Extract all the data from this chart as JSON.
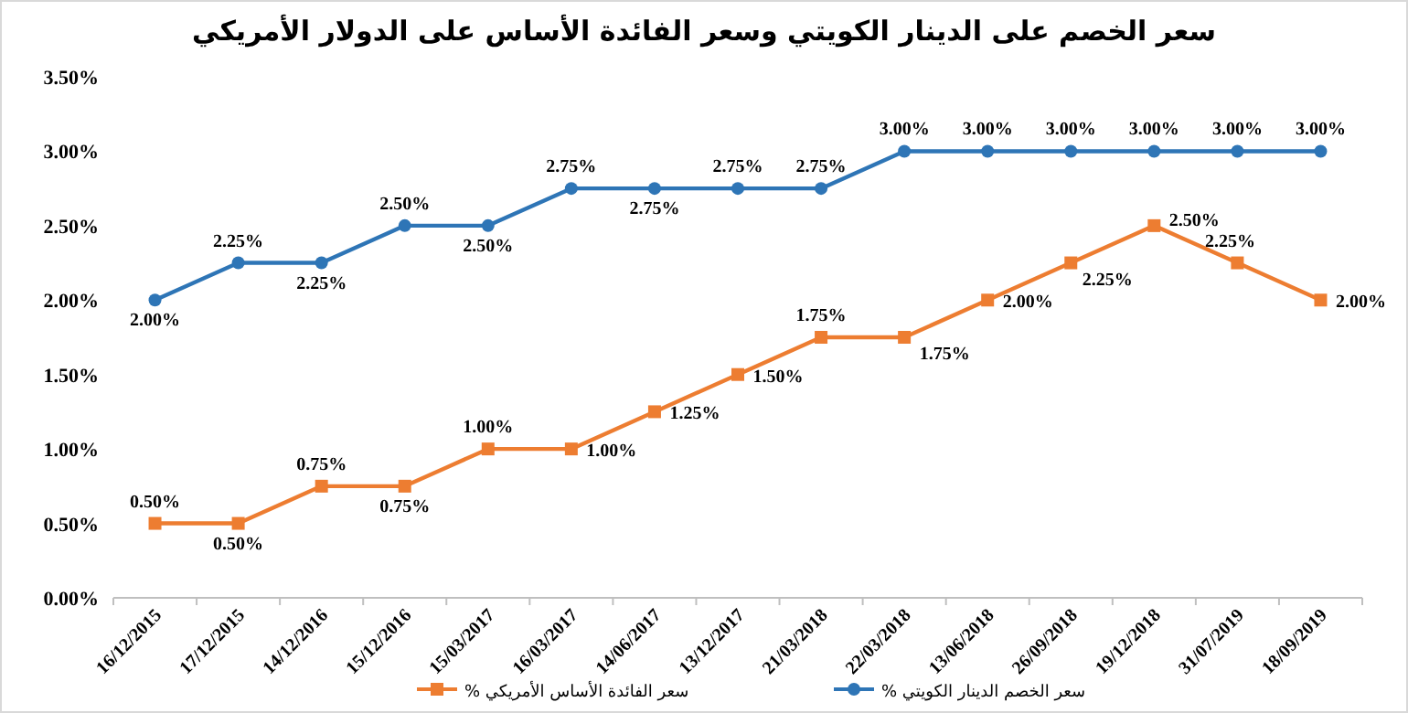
{
  "chart_data": {
    "type": "line",
    "title": "سعر الخصم على الدينار الكويتي وسعر الفائدة الأساس على الدولار الأمريكي",
    "categories": [
      "16/12/2015",
      "17/12/2015",
      "14/12/2016",
      "15/12/2016",
      "15/03/2017",
      "16/03/2017",
      "14/06/2017",
      "13/12/2017",
      "21/03/2018",
      "22/03/2018",
      "13/06/2018",
      "26/09/2018",
      "19/12/2018",
      "31/07/2019",
      "18/09/2019"
    ],
    "series": [
      {
        "name": "سعر الخصم الدينار الكويتي %",
        "color": "#2e75b6",
        "marker": "circle",
        "values": [
          2.0,
          2.25,
          2.25,
          2.5,
          2.5,
          2.75,
          2.75,
          2.75,
          2.75,
          3.0,
          3.0,
          3.0,
          3.0,
          3.0,
          3.0
        ],
        "value_labels": [
          "2.00%",
          "2.25%",
          "2.25%",
          "2.50%",
          "2.50%",
          "2.75%",
          "2.75%",
          "2.75%",
          "2.75%",
          "3.00%",
          "3.00%",
          "3.00%",
          "3.00%",
          "3.00%",
          "3.00%"
        ]
      },
      {
        "name": "سعر الفائدة الأساس الأمريكي %",
        "color": "#ed7d31",
        "marker": "square",
        "values": [
          0.5,
          0.5,
          0.75,
          0.75,
          1.0,
          1.0,
          1.25,
          1.5,
          1.75,
          1.75,
          2.0,
          2.25,
          2.5,
          2.25,
          2.0
        ],
        "value_labels": [
          "0.50%",
          "0.50%",
          "0.75%",
          "0.75%",
          "1.00%",
          "1.00%",
          "1.25%",
          "1.50%",
          "1.75%",
          "1.75%",
          "2.00%",
          "2.25%",
          "2.50%",
          "2.25%",
          "2.00%"
        ]
      }
    ],
    "ylim": [
      0,
      3.5
    ],
    "yticks": [
      {
        "value": 0,
        "label": "0.00%"
      },
      {
        "value": 0.5,
        "label": "0.50%"
      },
      {
        "value": 1,
        "label": "1.00%"
      },
      {
        "value": 1.5,
        "label": "1.50%"
      },
      {
        "value": 2,
        "label": "2.00%"
      },
      {
        "value": 2.5,
        "label": "2.50%"
      },
      {
        "value": 3,
        "label": "3.00%"
      },
      {
        "value": 3.5,
        "label": "3.50%"
      }
    ],
    "legend": "bottom"
  }
}
